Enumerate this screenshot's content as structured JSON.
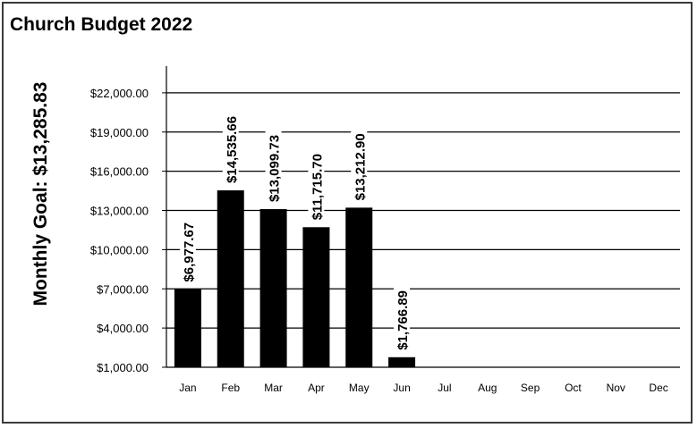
{
  "colors": {
    "bar": "#000000",
    "gridline": "#000000",
    "axis": "#000000",
    "border": "#3a3a3a",
    "background": "#ffffff"
  },
  "chart_data": {
    "type": "bar",
    "title": "Church Budget 2022",
    "ylabel": "Monthly Goal:  $13,285.83",
    "xlabel": "",
    "categories": [
      "Jan",
      "Feb",
      "Mar",
      "Apr",
      "May",
      "Jun",
      "Jul",
      "Aug",
      "Sep",
      "Oct",
      "Nov",
      "Dec"
    ],
    "values": [
      6977.67,
      14535.66,
      13099.73,
      11715.7,
      13212.9,
      1766.89,
      null,
      null,
      null,
      null,
      null,
      null
    ],
    "data_labels": [
      "$6,977.67",
      "$14,535.66",
      "$13,099.73",
      "$11,715.70",
      "$13,212.90",
      "$1,766.89",
      "",
      "",
      "",
      "",
      "",
      ""
    ],
    "yticks": [
      1000,
      4000,
      7000,
      10000,
      13000,
      16000,
      19000,
      22000
    ],
    "ytick_labels": [
      "$1,000.00",
      "$4,000.00",
      "$7,000.00",
      "$10,000.00",
      "$13,000.00",
      "$16,000.00",
      "$19,000.00",
      "$22,000.00"
    ],
    "ylim": [
      1000,
      25000
    ],
    "grid": true,
    "legend": "none"
  }
}
